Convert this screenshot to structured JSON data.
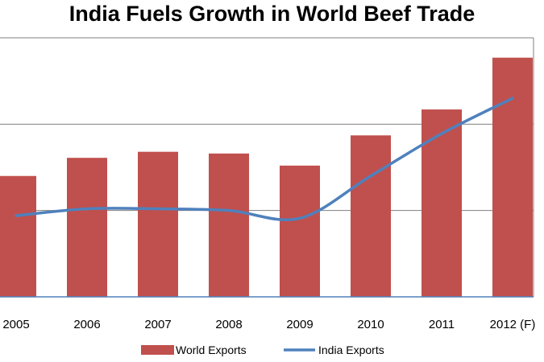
{
  "chart_data": {
    "type": "bar",
    "title": "India Fuels Growth in World Beef Trade",
    "categories": [
      "2005",
      "2006",
      "2007",
      "2008",
      "2009",
      "2010",
      "2011",
      "2012 (F)"
    ],
    "series": [
      {
        "name": "World Exports",
        "kind": "bar",
        "color": "#c0504d",
        "values": [
          1.4,
          1.61,
          1.68,
          1.66,
          1.52,
          1.87,
          2.17,
          2.77
        ]
      },
      {
        "name": "India Exports",
        "kind": "line",
        "color": "#4f81bd",
        "values": [
          0.94,
          1.02,
          1.02,
          1.0,
          0.91,
          1.4,
          1.89,
          2.3
        ]
      }
    ],
    "ylim": [
      0,
      3
    ],
    "grid": true,
    "legend": "bottom"
  }
}
